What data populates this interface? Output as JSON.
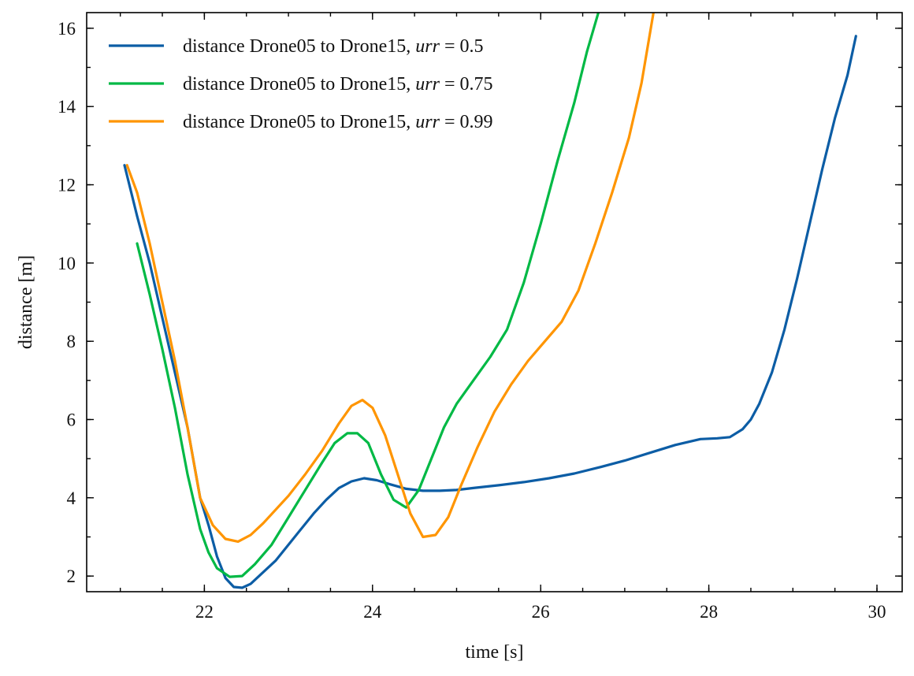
{
  "chart_data": {
    "type": "line",
    "xlabel": "time [s]",
    "ylabel": "distance [m]",
    "xlim": [
      20.6,
      30.3
    ],
    "ylim": [
      1.6,
      16.4
    ],
    "xticks": [
      22,
      24,
      26,
      28,
      30
    ],
    "yticks": [
      2,
      4,
      6,
      8,
      10,
      12,
      14,
      16
    ],
    "x_minor_step": 0.5,
    "y_minor_step": 1,
    "grid": false,
    "legend_position": "top-left",
    "series": [
      {
        "name": "distance Drone05 to Drone15, urr = 0.5",
        "legend_prefix": "distance Drone05 to Drone15, ",
        "legend_var": "urr",
        "legend_value": " = 0.5",
        "color": "#0C5DA5",
        "x": [
          21.05,
          21.2,
          21.35,
          21.5,
          21.65,
          21.8,
          21.95,
          22.05,
          22.15,
          22.25,
          22.35,
          22.45,
          22.55,
          22.7,
          22.85,
          23.0,
          23.15,
          23.3,
          23.45,
          23.6,
          23.75,
          23.9,
          24.05,
          24.2,
          24.4,
          24.6,
          24.8,
          25.0,
          25.2,
          25.5,
          25.8,
          26.1,
          26.4,
          26.7,
          27.0,
          27.3,
          27.6,
          27.9,
          28.1,
          28.25,
          28.4,
          28.5,
          28.6,
          28.75,
          28.9,
          29.05,
          29.2,
          29.35,
          29.5,
          29.65,
          29.75
        ],
        "y": [
          12.5,
          11.2,
          10.0,
          8.6,
          7.2,
          5.8,
          4.0,
          3.3,
          2.5,
          1.95,
          1.72,
          1.7,
          1.8,
          2.1,
          2.4,
          2.8,
          3.2,
          3.6,
          3.95,
          4.25,
          4.42,
          4.5,
          4.45,
          4.35,
          4.23,
          4.18,
          4.18,
          4.2,
          4.25,
          4.32,
          4.4,
          4.5,
          4.62,
          4.78,
          4.95,
          5.15,
          5.35,
          5.5,
          5.52,
          5.55,
          5.75,
          6.0,
          6.4,
          7.2,
          8.3,
          9.6,
          11.0,
          12.4,
          13.7,
          14.8,
          15.8
        ]
      },
      {
        "name": "distance Drone05 to Drone15, urr = 0.75",
        "legend_prefix": "distance Drone05 to Drone15, ",
        "legend_var": "urr",
        "legend_value": " = 0.75",
        "color": "#00B945",
        "x": [
          21.2,
          21.35,
          21.5,
          21.65,
          21.8,
          21.95,
          22.05,
          22.15,
          22.3,
          22.45,
          22.6,
          22.8,
          23.0,
          23.2,
          23.4,
          23.55,
          23.7,
          23.82,
          23.95,
          24.1,
          24.25,
          24.4,
          24.55,
          24.7,
          24.85,
          25.0,
          25.2,
          25.4,
          25.6,
          25.8,
          26.0,
          26.2,
          26.4,
          26.55,
          26.7
        ],
        "y": [
          10.5,
          9.2,
          7.8,
          6.3,
          4.6,
          3.2,
          2.6,
          2.2,
          1.98,
          2.0,
          2.3,
          2.8,
          3.5,
          4.2,
          4.9,
          5.4,
          5.65,
          5.65,
          5.4,
          4.6,
          3.95,
          3.75,
          4.2,
          5.0,
          5.8,
          6.4,
          7.0,
          7.6,
          8.3,
          9.5,
          11.0,
          12.6,
          14.1,
          15.4,
          16.5
        ]
      },
      {
        "name": "distance Drone05 to Drone15, urr = 0.99",
        "legend_prefix": "distance Drone05 to Drone15, ",
        "legend_var": "urr",
        "legend_value": " = 0.99",
        "color": "#FF9500",
        "x": [
          21.08,
          21.2,
          21.35,
          21.5,
          21.65,
          21.8,
          21.95,
          22.1,
          22.25,
          22.4,
          22.55,
          22.7,
          22.85,
          23.0,
          23.2,
          23.4,
          23.6,
          23.75,
          23.88,
          24.0,
          24.15,
          24.3,
          24.45,
          24.6,
          24.75,
          24.9,
          25.05,
          25.25,
          25.45,
          25.65,
          25.85,
          26.05,
          26.25,
          26.45,
          26.65,
          26.85,
          27.05,
          27.2,
          27.35
        ],
        "y": [
          12.5,
          11.8,
          10.5,
          9.0,
          7.5,
          5.8,
          4.0,
          3.3,
          2.95,
          2.88,
          3.05,
          3.35,
          3.7,
          4.05,
          4.6,
          5.2,
          5.9,
          6.35,
          6.5,
          6.3,
          5.6,
          4.6,
          3.6,
          3.0,
          3.05,
          3.5,
          4.3,
          5.3,
          6.2,
          6.9,
          7.5,
          8.0,
          8.5,
          9.3,
          10.5,
          11.8,
          13.2,
          14.6,
          16.5
        ]
      }
    ]
  }
}
